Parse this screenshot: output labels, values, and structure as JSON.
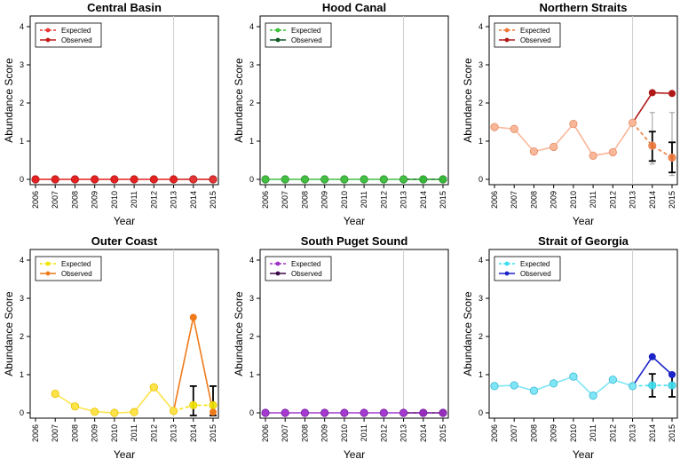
{
  "chart_data": [
    {
      "type": "line",
      "title": "Central Basin",
      "xlabel": "Year",
      "ylabel": "Abundance Score",
      "x": [
        2006,
        2007,
        2008,
        2009,
        2010,
        2011,
        2012,
        2013,
        2014,
        2015
      ],
      "ylim": [
        0,
        4
      ],
      "yticks": [
        0,
        1,
        2,
        3,
        4
      ],
      "reference_year": 2013,
      "legend": {
        "position": "top-left",
        "items": [
          "Expected",
          "Observed"
        ]
      },
      "colors": {
        "expected": "#e8393a",
        "observed": "#c41a1a",
        "hist_fill": "#e52222",
        "hist_stroke": "#b01515"
      },
      "series": [
        {
          "name": "Expected",
          "x": [
            2013,
            2014,
            2015
          ],
          "values": [
            0,
            0,
            0
          ]
        },
        {
          "name": "Observed",
          "x": [
            2006,
            2007,
            2008,
            2009,
            2010,
            2011,
            2012,
            2013,
            2014,
            2015
          ],
          "values": [
            0,
            0,
            0,
            0,
            0,
            0,
            0,
            0,
            0,
            0
          ]
        }
      ],
      "error_bars": []
    },
    {
      "type": "line",
      "title": "Hood Canal",
      "xlabel": "Year",
      "ylabel": "Abundance Score",
      "x": [
        2006,
        2007,
        2008,
        2009,
        2010,
        2011,
        2012,
        2013,
        2014,
        2015
      ],
      "ylim": [
        0,
        4
      ],
      "yticks": [
        0,
        1,
        2,
        3,
        4
      ],
      "reference_year": 2013,
      "legend": {
        "position": "top-left",
        "items": [
          "Expected",
          "Observed"
        ]
      },
      "colors": {
        "expected": "#3cc23c",
        "observed": "#0e5a25",
        "hist_fill": "#43c043",
        "hist_stroke": "#2a8f2a"
      },
      "series": [
        {
          "name": "Expected",
          "x": [
            2013,
            2014,
            2015
          ],
          "values": [
            0,
            0,
            0
          ]
        },
        {
          "name": "Observed",
          "x": [
            2006,
            2007,
            2008,
            2009,
            2010,
            2011,
            2012,
            2013,
            2014,
            2015
          ],
          "values": [
            0,
            0,
            0,
            0,
            0,
            0,
            0,
            0,
            0,
            0
          ]
        }
      ],
      "error_bars": []
    },
    {
      "type": "line",
      "title": "Northern Straits",
      "xlabel": "Year",
      "ylabel": "Abundance Score",
      "x": [
        2006,
        2007,
        2008,
        2009,
        2010,
        2011,
        2012,
        2013,
        2014,
        2015
      ],
      "ylim": [
        0,
        4
      ],
      "yticks": [
        0,
        1,
        2,
        3,
        4
      ],
      "reference_year": 2013,
      "legend": {
        "position": "top-left",
        "items": [
          "Expected",
          "Observed"
        ]
      },
      "colors": {
        "expected": "#f07a3a",
        "observed": "#b01818",
        "hist_fill": "#f9b79a",
        "hist_stroke": "#e58a60"
      },
      "series": [
        {
          "name": "Expected",
          "x": [
            2013,
            2014,
            2015
          ],
          "values": [
            1.48,
            0.88,
            0.57
          ]
        },
        {
          "name": "Observed",
          "x": [
            2006,
            2007,
            2008,
            2009,
            2010,
            2011,
            2012,
            2013,
            2014,
            2015
          ],
          "values": [
            1.37,
            1.32,
            0.73,
            0.85,
            1.45,
            0.62,
            0.71,
            1.48,
            2.27,
            2.25
          ]
        }
      ],
      "error_bars": [
        {
          "x": 2014,
          "lo": 0.48,
          "hi": 1.25,
          "lo_outer": 0.4,
          "hi_outer": 1.75
        },
        {
          "x": 2015,
          "lo": 0.18,
          "hi": 0.97,
          "lo_outer": 0.1,
          "hi_outer": 1.75
        }
      ]
    },
    {
      "type": "line",
      "title": "Outer Coast",
      "xlabel": "Year",
      "ylabel": "Abundance Score",
      "x": [
        2006,
        2007,
        2008,
        2009,
        2010,
        2011,
        2012,
        2013,
        2014,
        2015
      ],
      "ylim": [
        0,
        4
      ],
      "yticks": [
        0,
        1,
        2,
        3,
        4
      ],
      "reference_year": 2013,
      "legend": {
        "position": "top-left",
        "items": [
          "Expected",
          "Observed"
        ]
      },
      "colors": {
        "expected": "#f2e600",
        "observed": "#ef7a1a",
        "hist_fill": "#fde34a",
        "hist_stroke": "#e8c200"
      },
      "series": [
        {
          "name": "Expected",
          "x": [
            2013,
            2014,
            2015
          ],
          "values": [
            0.05,
            0.2,
            0.2
          ]
        },
        {
          "name": "Observed",
          "x": [
            2007,
            2008,
            2009,
            2010,
            2011,
            2012,
            2013,
            2014,
            2015
          ],
          "values": [
            0.5,
            0.17,
            0.03,
            0,
            0.02,
            0.67,
            0.05,
            2.5,
            0.02
          ]
        }
      ],
      "error_bars": [
        {
          "x": 2014,
          "lo": -0.07,
          "hi": 0.7
        },
        {
          "x": 2015,
          "lo": -0.07,
          "hi": 0.7
        }
      ]
    },
    {
      "type": "line",
      "title": "South Puget Sound",
      "xlabel": "Year",
      "ylabel": "Abundance Score",
      "x": [
        2006,
        2007,
        2008,
        2009,
        2010,
        2011,
        2012,
        2013,
        2014,
        2015
      ],
      "ylim": [
        0,
        4
      ],
      "yticks": [
        0,
        1,
        2,
        3,
        4
      ],
      "reference_year": 2013,
      "legend": {
        "position": "top-left",
        "items": [
          "Expected",
          "Observed"
        ]
      },
      "colors": {
        "expected": "#a032c8",
        "observed": "#3e0a4a",
        "hist_fill": "#a43ad0",
        "hist_stroke": "#7a1ea0"
      },
      "series": [
        {
          "name": "Expected",
          "x": [
            2013,
            2014,
            2015
          ],
          "values": [
            0,
            0,
            0
          ]
        },
        {
          "name": "Observed",
          "x": [
            2006,
            2007,
            2008,
            2009,
            2010,
            2011,
            2012,
            2013,
            2014,
            2015
          ],
          "values": [
            0,
            0,
            0,
            0,
            0,
            0,
            0,
            0,
            0,
            0
          ]
        }
      ],
      "error_bars": []
    },
    {
      "type": "line",
      "title": "Strait of Georgia",
      "xlabel": "Year",
      "ylabel": "Abundance Score",
      "x": [
        2006,
        2007,
        2008,
        2009,
        2010,
        2011,
        2012,
        2013,
        2014,
        2015
      ],
      "ylim": [
        0,
        4
      ],
      "yticks": [
        0,
        1,
        2,
        3,
        4
      ],
      "reference_year": 2013,
      "legend": {
        "position": "top-left",
        "items": [
          "Expected",
          "Observed"
        ]
      },
      "colors": {
        "expected": "#3ee0f0",
        "observed": "#1a24c8",
        "hist_fill": "#7ee6f6",
        "hist_stroke": "#3ab8d0"
      },
      "series": [
        {
          "name": "Expected",
          "x": [
            2013,
            2014,
            2015
          ],
          "values": [
            0.7,
            0.72,
            0.72
          ]
        },
        {
          "name": "Observed",
          "x": [
            2006,
            2007,
            2008,
            2009,
            2010,
            2011,
            2012,
            2013,
            2014,
            2015
          ],
          "values": [
            0.7,
            0.72,
            0.58,
            0.77,
            0.95,
            0.45,
            0.87,
            0.7,
            1.47,
            1.0
          ]
        }
      ],
      "error_bars": [
        {
          "x": 2014,
          "lo": 0.42,
          "hi": 1.02
        },
        {
          "x": 2015,
          "lo": 0.42,
          "hi": 1.02
        }
      ]
    }
  ]
}
